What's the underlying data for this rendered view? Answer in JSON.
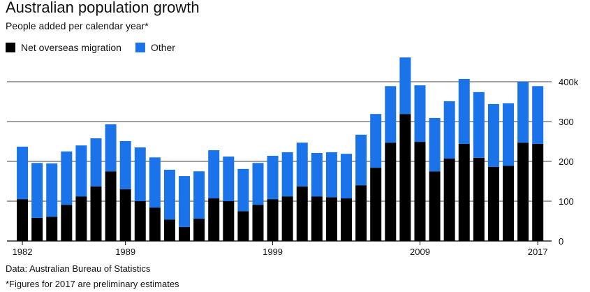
{
  "chart_data": {
    "type": "stacked_bar",
    "title": "Australian population growth",
    "subtitle": "People added per calendar year*",
    "categories": [
      "1982",
      null,
      null,
      null,
      null,
      null,
      null,
      "1989",
      null,
      null,
      null,
      null,
      null,
      null,
      null,
      null,
      null,
      "1999",
      null,
      null,
      null,
      null,
      null,
      null,
      null,
      null,
      null,
      "2009",
      null,
      null,
      null,
      null,
      null,
      null,
      null,
      "2017"
    ],
    "series": [
      {
        "name": "Net overseas migration",
        "color": "#000000",
        "values": [
          105,
          58,
          61,
          91,
          112,
          137,
          175,
          130,
          100,
          84,
          54,
          35,
          56,
          107,
          100,
          75,
          91,
          105,
          112,
          137,
          112,
          110,
          107,
          140,
          184,
          247,
          319,
          249,
          175,
          207,
          244,
          209,
          186,
          189,
          247,
          244
        ]
      },
      {
        "name": "Other",
        "color": "#1a73e8",
        "values": [
          132,
          138,
          134,
          134,
          128,
          121,
          118,
          121,
          135,
          126,
          125,
          128,
          119,
          121,
          112,
          106,
          105,
          109,
          111,
          110,
          109,
          113,
          112,
          127,
          135,
          142,
          142,
          142,
          134,
          144,
          163,
          165,
          158,
          157,
          153,
          145
        ]
      }
    ],
    "ylim": [
      0,
      480
    ],
    "yticks": [
      0,
      100,
      200,
      300,
      {
        "value": 400,
        "label": "400k"
      }
    ],
    "grid": true,
    "source": "Data: Australian Bureau of Statistics",
    "note": "*Figures for 2017 are preliminary estimates"
  }
}
